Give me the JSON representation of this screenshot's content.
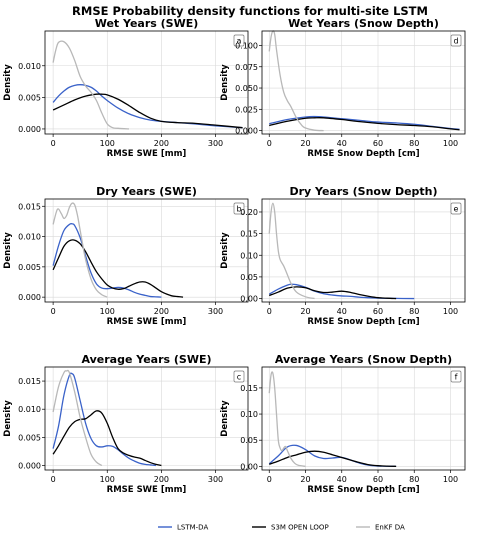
{
  "figure": {
    "title": "RMSE Probability density functions for multi-site LSTM",
    "legend": {
      "placement": "bottom-center",
      "items": [
        {
          "label": "LSTM-DA",
          "color": "#3a62c9"
        },
        {
          "label": "S3M OPEN LOOP",
          "color": "#000000"
        },
        {
          "label": "EnKF DA",
          "color": "#b8b8b8"
        }
      ]
    }
  },
  "chart_data": [
    {
      "type": "line",
      "panel_label": "a",
      "title": "Wet Years (SWE)",
      "xlabel": "RMSE SWE [mm]",
      "ylabel": "Density",
      "xlim": [
        -15,
        360
      ],
      "ylim": [
        -0.0008,
        0.0155
      ],
      "xticks": [
        0,
        100,
        200,
        300
      ],
      "xtick_labels": [
        "0",
        "100",
        "200",
        "300"
      ],
      "yticks": [
        0,
        0.005,
        0.01
      ],
      "ytick_labels": [
        "0.000",
        "0.005",
        "0.010"
      ],
      "grid": true,
      "series": [
        {
          "name": "LSTM-DA",
          "color": "#3a62c9",
          "x": [
            0,
            10,
            20,
            30,
            40,
            50,
            60,
            70,
            80,
            90,
            100,
            120,
            140,
            160,
            180,
            200,
            230,
            260,
            300,
            350
          ],
          "y": [
            0.0042,
            0.0052,
            0.006,
            0.0066,
            0.0069,
            0.007,
            0.0069,
            0.0066,
            0.006,
            0.0052,
            0.0045,
            0.0033,
            0.0024,
            0.0018,
            0.0014,
            0.0012,
            0.001,
            0.0008,
            0.0005,
            0.0002
          ]
        },
        {
          "name": "S3M OPEN LOOP",
          "color": "#000000",
          "x": [
            0,
            20,
            40,
            60,
            80,
            90,
            100,
            120,
            140,
            160,
            180,
            200,
            230,
            260,
            300,
            350
          ],
          "y": [
            0.003,
            0.0038,
            0.0046,
            0.0052,
            0.0055,
            0.0055,
            0.0054,
            0.0047,
            0.0037,
            0.0026,
            0.0017,
            0.0012,
            0.001,
            0.0009,
            0.0006,
            0.0002
          ]
        },
        {
          "name": "EnKF DA",
          "color": "#b8b8b8",
          "x": [
            0,
            5,
            10,
            20,
            30,
            40,
            50,
            60,
            70,
            80,
            90,
            100,
            110,
            120,
            140
          ],
          "y": [
            0.0105,
            0.0125,
            0.0137,
            0.0138,
            0.0128,
            0.0108,
            0.0083,
            0.0068,
            0.0058,
            0.0045,
            0.0025,
            0.0008,
            0.0002,
            0.0001,
            0
          ]
        }
      ]
    },
    {
      "type": "line",
      "panel_label": "d",
      "title": "Wet Years (Snow Depth)",
      "xlabel": "RMSE Snow Depth [cm]",
      "ylabel": "Density",
      "xlim": [
        -4,
        108
      ],
      "ylim": [
        -0.004,
        0.117
      ],
      "xticks": [
        0,
        20,
        40,
        60,
        80,
        100
      ],
      "xtick_labels": [
        "0",
        "20",
        "40",
        "60",
        "80",
        "100"
      ],
      "yticks": [
        0,
        0.025,
        0.05,
        0.075,
        0.1
      ],
      "ytick_labels": [
        "0.000",
        "0.025",
        "0.050",
        "0.075",
        "0.100"
      ],
      "grid": true,
      "series": [
        {
          "name": "LSTM-DA",
          "color": "#3a62c9",
          "x": [
            0,
            10,
            20,
            25,
            30,
            40,
            50,
            60,
            70,
            80,
            90,
            100,
            105
          ],
          "y": [
            0.008,
            0.013,
            0.016,
            0.0165,
            0.016,
            0.014,
            0.012,
            0.01,
            0.009,
            0.0075,
            0.005,
            0.0025,
            0.0015
          ]
        },
        {
          "name": "S3M OPEN LOOP",
          "color": "#000000",
          "x": [
            0,
            10,
            20,
            25,
            30,
            40,
            50,
            60,
            70,
            80,
            90,
            100,
            105
          ],
          "y": [
            0.006,
            0.011,
            0.0145,
            0.015,
            0.015,
            0.013,
            0.0105,
            0.0085,
            0.007,
            0.006,
            0.0045,
            0.002,
            0.001
          ]
        },
        {
          "name": "EnKF DA",
          "color": "#b8b8b8",
          "x": [
            0,
            1,
            2,
            3,
            4,
            6,
            8,
            10,
            12,
            15,
            18,
            20,
            25,
            30
          ],
          "y": [
            0.093,
            0.11,
            0.117,
            0.113,
            0.095,
            0.065,
            0.045,
            0.035,
            0.028,
            0.015,
            0.006,
            0.003,
            0.0005,
            0
          ]
        }
      ]
    },
    {
      "type": "line",
      "panel_label": "b",
      "title": "Dry Years (SWE)",
      "xlabel": "RMSE SWE [mm]",
      "ylabel": "Density",
      "xlim": [
        -15,
        360
      ],
      "ylim": [
        -0.0008,
        0.0162
      ],
      "xticks": [
        0,
        100,
        200,
        300
      ],
      "xtick_labels": [
        "0",
        "100",
        "200",
        "300"
      ],
      "yticks": [
        0,
        0.005,
        0.01,
        0.015
      ],
      "ytick_labels": [
        "0.000",
        "0.005",
        "0.010",
        "0.015"
      ],
      "grid": true,
      "series": [
        {
          "name": "LSTM-DA",
          "color": "#3a62c9",
          "x": [
            0,
            10,
            20,
            30,
            35,
            40,
            50,
            60,
            70,
            80,
            90,
            100,
            110,
            120,
            130,
            140,
            150,
            160,
            170,
            180,
            190,
            200
          ],
          "y": [
            0.0052,
            0.0085,
            0.011,
            0.012,
            0.0121,
            0.0118,
            0.0098,
            0.0068,
            0.004,
            0.0022,
            0.0015,
            0.0014,
            0.0015,
            0.0016,
            0.0015,
            0.0012,
            0.0008,
            0.0005,
            0.0003,
            0.0001,
            5e-05,
            0
          ]
        },
        {
          "name": "S3M OPEN LOOP",
          "color": "#000000",
          "x": [
            0,
            10,
            20,
            30,
            40,
            50,
            60,
            70,
            80,
            90,
            100,
            110,
            120,
            130,
            140,
            150,
            160,
            170,
            180,
            190,
            200,
            210,
            220,
            230,
            240
          ],
          "y": [
            0.0045,
            0.0065,
            0.0084,
            0.0093,
            0.0094,
            0.0088,
            0.0075,
            0.0058,
            0.0042,
            0.003,
            0.002,
            0.0015,
            0.0013,
            0.0014,
            0.0018,
            0.0022,
            0.0025,
            0.0025,
            0.0021,
            0.0015,
            0.0009,
            0.0005,
            0.0002,
            0.0001,
            0
          ]
        },
        {
          "name": "EnKF DA",
          "color": "#b8b8b8",
          "x": [
            0,
            8,
            15,
            20,
            25,
            30,
            35,
            40,
            45,
            50,
            55,
            60,
            70,
            80,
            90,
            100
          ],
          "y": [
            0.012,
            0.0145,
            0.0138,
            0.013,
            0.0135,
            0.0148,
            0.0155,
            0.0152,
            0.0135,
            0.011,
            0.0085,
            0.0062,
            0.003,
            0.0012,
            0.0004,
            0
          ]
        }
      ]
    },
    {
      "type": "line",
      "panel_label": "e",
      "title": "Dry Years (Snow Depth)",
      "xlabel": "RMSE Snow Depth [cm]",
      "ylabel": "Density",
      "xlim": [
        -4,
        108
      ],
      "ylim": [
        -0.008,
        0.23
      ],
      "xticks": [
        0,
        20,
        40,
        60,
        80,
        100
      ],
      "xtick_labels": [
        "0",
        "20",
        "40",
        "60",
        "80",
        "100"
      ],
      "yticks": [
        0,
        0.05,
        0.1,
        0.15,
        0.2
      ],
      "ytick_labels": [
        "0.00",
        "0.05",
        "0.10",
        "0.15",
        "0.20"
      ],
      "grid": true,
      "series": [
        {
          "name": "LSTM-DA",
          "color": "#3a62c9",
          "x": [
            0,
            5,
            10,
            12,
            15,
            20,
            25,
            30,
            35,
            40,
            45,
            50,
            55,
            60,
            70,
            80
          ],
          "y": [
            0.01,
            0.022,
            0.031,
            0.033,
            0.032,
            0.026,
            0.017,
            0.011,
            0.008,
            0.006,
            0.005,
            0.003,
            0.002,
            0.001,
            0.0003,
            0
          ]
        },
        {
          "name": "S3M OPEN LOOP",
          "color": "#000000",
          "x": [
            0,
            5,
            10,
            15,
            20,
            25,
            30,
            35,
            40,
            45,
            50,
            55,
            60,
            65,
            70
          ],
          "y": [
            0.007,
            0.015,
            0.024,
            0.027,
            0.025,
            0.018,
            0.014,
            0.015,
            0.017,
            0.014,
            0.009,
            0.005,
            0.002,
            0.0008,
            0
          ]
        },
        {
          "name": "EnKF DA",
          "color": "#b8b8b8",
          "x": [
            0,
            1,
            2,
            3,
            4,
            5,
            6,
            8,
            10,
            12,
            15,
            20,
            25
          ],
          "y": [
            0.15,
            0.2,
            0.22,
            0.2,
            0.15,
            0.11,
            0.09,
            0.075,
            0.055,
            0.035,
            0.015,
            0.004,
            0
          ]
        }
      ]
    },
    {
      "type": "line",
      "panel_label": "c",
      "title": "Average Years (SWE)",
      "xlabel": "RMSE SWE [mm]",
      "ylabel": "Density",
      "xlim": [
        -15,
        360
      ],
      "ylim": [
        -0.0008,
        0.0175
      ],
      "xticks": [
        0,
        100,
        200,
        300
      ],
      "xtick_labels": [
        "0",
        "100",
        "200",
        "300"
      ],
      "yticks": [
        0,
        0.005,
        0.01,
        0.015
      ],
      "ytick_labels": [
        "0.000",
        "0.005",
        "0.010",
        "0.015"
      ],
      "grid": true,
      "series": [
        {
          "name": "LSTM-DA",
          "color": "#3a62c9",
          "x": [
            0,
            10,
            20,
            30,
            35,
            40,
            50,
            60,
            70,
            80,
            90,
            100,
            110,
            120,
            130,
            140,
            150,
            160,
            170,
            180,
            190
          ],
          "y": [
            0.003,
            0.007,
            0.0125,
            0.016,
            0.0163,
            0.0155,
            0.0115,
            0.0075,
            0.0048,
            0.0035,
            0.0033,
            0.0035,
            0.0034,
            0.0028,
            0.002,
            0.0013,
            0.0008,
            0.0004,
            0.0002,
            0.0001,
            0
          ]
        },
        {
          "name": "S3M OPEN LOOP",
          "color": "#000000",
          "x": [
            0,
            10,
            20,
            30,
            40,
            50,
            60,
            70,
            80,
            90,
            100,
            110,
            120,
            130,
            140,
            150,
            160,
            170,
            180,
            190,
            200
          ],
          "y": [
            0.002,
            0.0035,
            0.0052,
            0.0068,
            0.0078,
            0.0082,
            0.0083,
            0.009,
            0.0097,
            0.0093,
            0.0075,
            0.005,
            0.003,
            0.0022,
            0.0018,
            0.0015,
            0.0013,
            0.0009,
            0.0005,
            0.0002,
            0
          ]
        },
        {
          "name": "EnKF DA",
          "color": "#b8b8b8",
          "x": [
            0,
            10,
            20,
            25,
            30,
            40,
            50,
            60,
            70,
            80,
            90
          ],
          "y": [
            0.0095,
            0.014,
            0.0165,
            0.0168,
            0.0165,
            0.013,
            0.0085,
            0.005,
            0.002,
            0.0006,
            0
          ]
        }
      ]
    },
    {
      "type": "line",
      "panel_label": "f",
      "title": "Average Years (Snow Depth)",
      "xlabel": "RMSE Snow Depth [cm]",
      "ylabel": "Density",
      "xlim": [
        -4,
        108
      ],
      "ylim": [
        -0.007,
        0.19
      ],
      "xticks": [
        0,
        20,
        40,
        60,
        80,
        100
      ],
      "xtick_labels": [
        "0",
        "20",
        "40",
        "60",
        "80",
        "100"
      ],
      "yticks": [
        0,
        0.05,
        0.1,
        0.15
      ],
      "ytick_labels": [
        "0.00",
        "0.05",
        "0.10",
        "0.15"
      ],
      "grid": true,
      "series": [
        {
          "name": "LSTM-DA",
          "color": "#3a62c9",
          "x": [
            0,
            5,
            10,
            15,
            20,
            25,
            30,
            35,
            40,
            45,
            50,
            55,
            60,
            70
          ],
          "y": [
            0.005,
            0.02,
            0.037,
            0.04,
            0.032,
            0.02,
            0.015,
            0.016,
            0.017,
            0.012,
            0.006,
            0.002,
            0.0005,
            0
          ]
        },
        {
          "name": "S3M OPEN LOOP",
          "color": "#000000",
          "x": [
            0,
            5,
            10,
            15,
            20,
            25,
            30,
            35,
            40,
            45,
            50,
            55,
            60,
            65,
            70
          ],
          "y": [
            0.004,
            0.01,
            0.017,
            0.022,
            0.027,
            0.029,
            0.027,
            0.022,
            0.017,
            0.012,
            0.007,
            0.003,
            0.0012,
            0.0004,
            0
          ]
        },
        {
          "name": "EnKF DA",
          "color": "#b8b8b8",
          "x": [
            0,
            1,
            2,
            3,
            4,
            5,
            6,
            7,
            8,
            9,
            10,
            12,
            14,
            16,
            20
          ],
          "y": [
            0.14,
            0.175,
            0.178,
            0.15,
            0.1,
            0.05,
            0.035,
            0.03,
            0.035,
            0.038,
            0.03,
            0.015,
            0.006,
            0.002,
            0
          ]
        }
      ]
    }
  ]
}
